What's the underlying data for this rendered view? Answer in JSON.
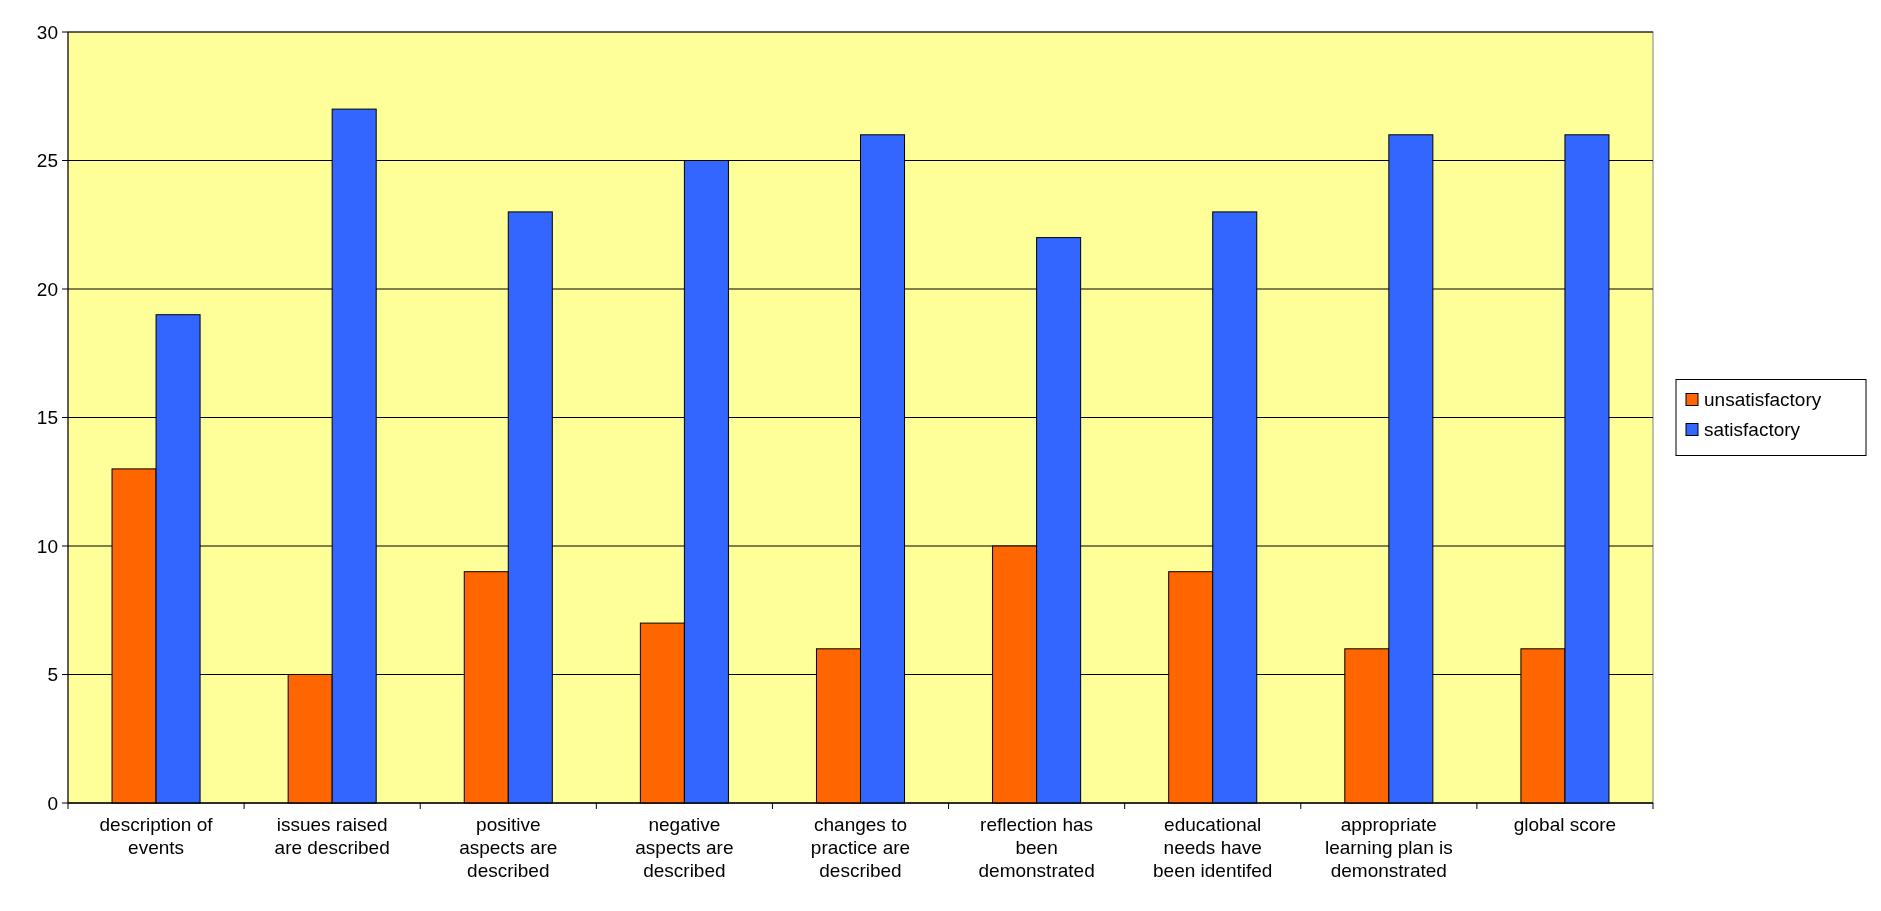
{
  "chart_data": {
    "type": "bar",
    "categories": [
      "description of\nevents",
      "issues raised\nare described",
      "positive\naspects are\ndescribed",
      "negative\naspects are\ndescribed",
      "changes to\npractice are\ndescribed",
      "reflection has\nbeen\ndemonstrated",
      "educational\nneeds have\nbeen identifed",
      "appropriate\nlearning plan is\ndemonstrated",
      "global score"
    ],
    "series": [
      {
        "name": "unsatisfactory",
        "color": "#ff6600",
        "values": [
          13,
          5,
          9,
          7,
          6,
          10,
          9,
          6,
          6
        ]
      },
      {
        "name": "satisfactory",
        "color": "#3366ff",
        "values": [
          19,
          27,
          23,
          25,
          26,
          22,
          23,
          26,
          26
        ]
      }
    ],
    "ylim": [
      0,
      30
    ],
    "yticks": [
      0,
      5,
      10,
      15,
      20,
      25,
      30
    ],
    "grid": "y",
    "legend": "right"
  }
}
